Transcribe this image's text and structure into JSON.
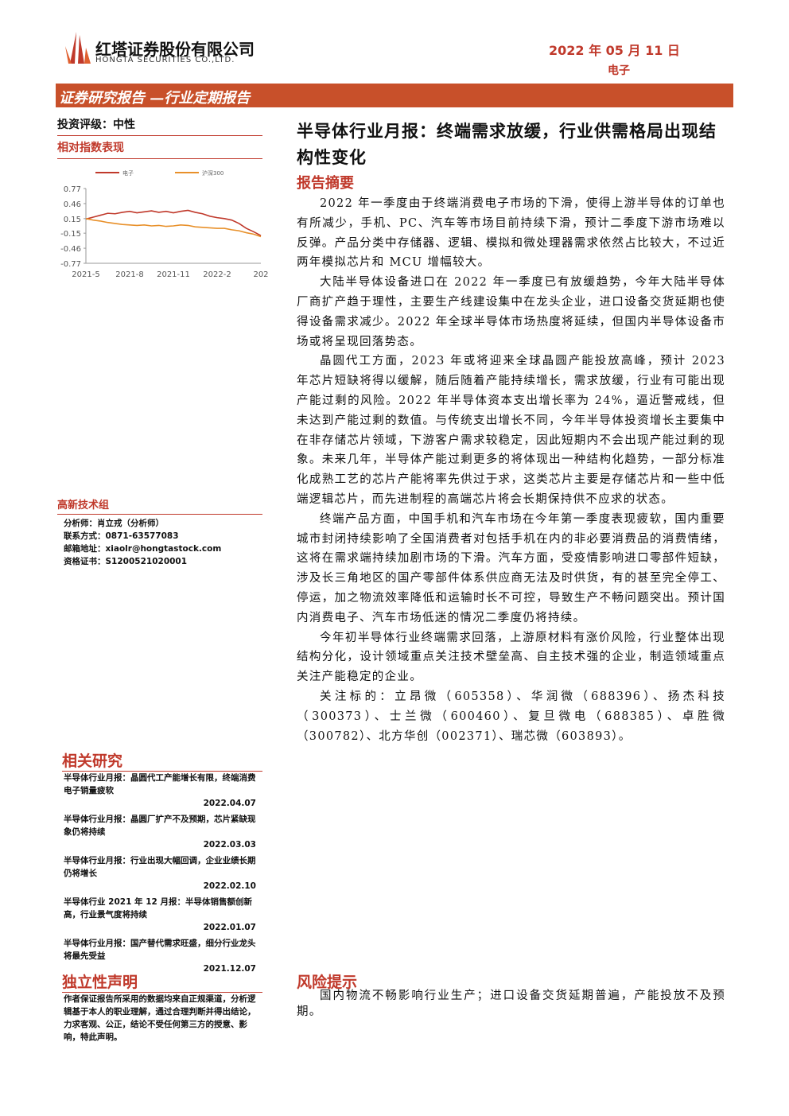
{
  "header": {
    "company": "红塔证券股份有限公司",
    "company_en": "HONGTA SECURITIES CO.,LTD.",
    "date": "2022 年 05 月 11 日",
    "sector": "电子"
  },
  "banner": "证券研究报告 —行业定期报告",
  "rating": "投资评级：中性",
  "chart_heading": "相对指数表现",
  "chart_data": {
    "type": "line",
    "categories": [
      "2021-5",
      null,
      null,
      null,
      null,
      null,
      "2021-8",
      null,
      null,
      null,
      null,
      null,
      "2021-11",
      null,
      null,
      null,
      null,
      null,
      "2022-2",
      null,
      null,
      null,
      null,
      null,
      "202"
    ],
    "series": [
      {
        "name": "电子",
        "color": "#c0392b",
        "values": [
          0.14,
          0.18,
          0.22,
          0.26,
          0.25,
          0.28,
          0.3,
          0.27,
          0.29,
          0.31,
          0.28,
          0.3,
          0.27,
          0.3,
          0.32,
          0.28,
          0.25,
          0.2,
          0.17,
          0.15,
          0.12,
          0.05,
          -0.05,
          -0.12,
          -0.2
        ]
      },
      {
        "name": "沪深300",
        "color": "#e8902a",
        "values": [
          0.15,
          0.12,
          0.1,
          0.07,
          0.05,
          0.03,
          0.02,
          0.01,
          0.02,
          0.0,
          0.01,
          -0.01,
          0.0,
          0.02,
          0.01,
          -0.02,
          -0.03,
          -0.04,
          -0.05,
          -0.05,
          -0.08,
          -0.1,
          -0.14,
          -0.17,
          -0.22
        ]
      }
    ],
    "ylim": [
      -0.77,
      0.77
    ],
    "yticks": [
      0.77,
      0.46,
      0.15,
      -0.15,
      -0.46,
      -0.77
    ]
  },
  "team": "高新技术组",
  "analyst": [
    "分析师：肖立戎（分析师）",
    "联系方式：0871-63577083",
    "邮箱地址：xiaolr@hongtastock.com",
    "资格证书：S1200521020001"
  ],
  "related": {
    "heading": "相关研究",
    "items": [
      {
        "title": "半导体行业月报：晶圆代工产能增长有限，终端消费电子销量疲软",
        "date": "2022.04.07"
      },
      {
        "title": "半导体行业月报：晶圆厂扩产不及预期，芯片紧缺现象仍将持续",
        "date": "2022.03.03"
      },
      {
        "title": "半导体行业月报：行业出现大幅回调，企业业绩长期仍将增长",
        "date": "2022.02.10"
      },
      {
        "title": "半导体行业 2021 年 12 月报：半导体销售额创新高，行业景气度将持续",
        "date": "2022.01.07"
      },
      {
        "title": "半导体行业月报：国产替代需求旺盛，细分行业龙头将最先受益",
        "date": "2021.12.07"
      }
    ]
  },
  "independence": {
    "heading": "独立性声明",
    "text": "作者保证报告所采用的数据均来自正规渠道，分析逻辑基于本人的职业理解，通过合理判断并得出结论，力求客观、公正，结论不受任何第三方的授意、影响，特此声明。"
  },
  "report": {
    "title": "半导体行业月报：终端需求放缓，行业供需格局出现结构性变化",
    "summary_heading": "报告摘要",
    "paragraphs": [
      "2022 年一季度由于终端消费电子市场的下滑，使得上游半导体的订单也有所减少，手机、PC、汽车等市场目前持续下滑，预计二季度下游市场难以反弹。产品分类中存储器、逻辑、模拟和微处理器需求依然占比较大，不过近两年模拟芯片和 MCU 增幅较大。",
      "大陆半导体设备进口在 2022 年一季度已有放缓趋势，今年大陆半导体厂商扩产趋于理性，主要生产线建设集中在龙头企业，进口设备交货延期也使得设备需求减少。2022 年全球半导体市场热度将延续，但国内半导体设备市场或将呈现回落势态。",
      "晶圆代工方面，2023 年或将迎来全球晶圆产能投放高峰，预计 2023 年芯片短缺将得以缓解，随后随着产能持续增长，需求放缓，行业有可能出现产能过剩的风险。2022 年半导体资本支出增长率为 24%，逼近警戒线，但未达到产能过剩的数值。与传统支出增长不同，今年半导体投资增长主要集中在非存储芯片领域，下游客户需求较稳定，因此短期内不会出现产能过剩的现象。未来几年，半导体产能过剩更多的将体现出一种结构化趋势，一部分标准化成熟工艺的芯片产能将率先供过于求，这类芯片主要是存储芯片和一些中低端逻辑芯片，而先进制程的高端芯片将会长期保持供不应求的状态。",
      "终端产品方面，中国手机和汽车市场在今年第一季度表现疲软，国内重要城市封闭持续影响了全国消费者对包括手机在内的非必要消费品的消费情绪，这将在需求端持续加剧市场的下滑。汽车方面，受疫情影响进口零部件短缺，涉及长三角地区的国产零部件体系供应商无法及时供货，有的甚至完全停工、停运，加之物流效率降低和运输时长不可控，导致生产不畅问题突出。预计国内消费电子、汽车市场低迷的情况二季度仍将持续。",
      "今年初半导体行业终端需求回落，上游原材料有涨价风险，行业整体出现结构分化，设计领域重点关注技术壁垒高、自主技术强的企业，制造领域重点关注产能稳定的企业。",
      "关注标的：立昂微（605358）、华润微（688396）、扬杰科技（300373）、士兰微（600460）、复旦微电（688385）、卓胜微（300782）、北方华创（002371）、瑞芯微（603893）。"
    ],
    "risk_heading": "风险提示",
    "risk": "国内物流不畅影响行业生产；进口设备交货延期普遍，产能投放不及预期。"
  }
}
